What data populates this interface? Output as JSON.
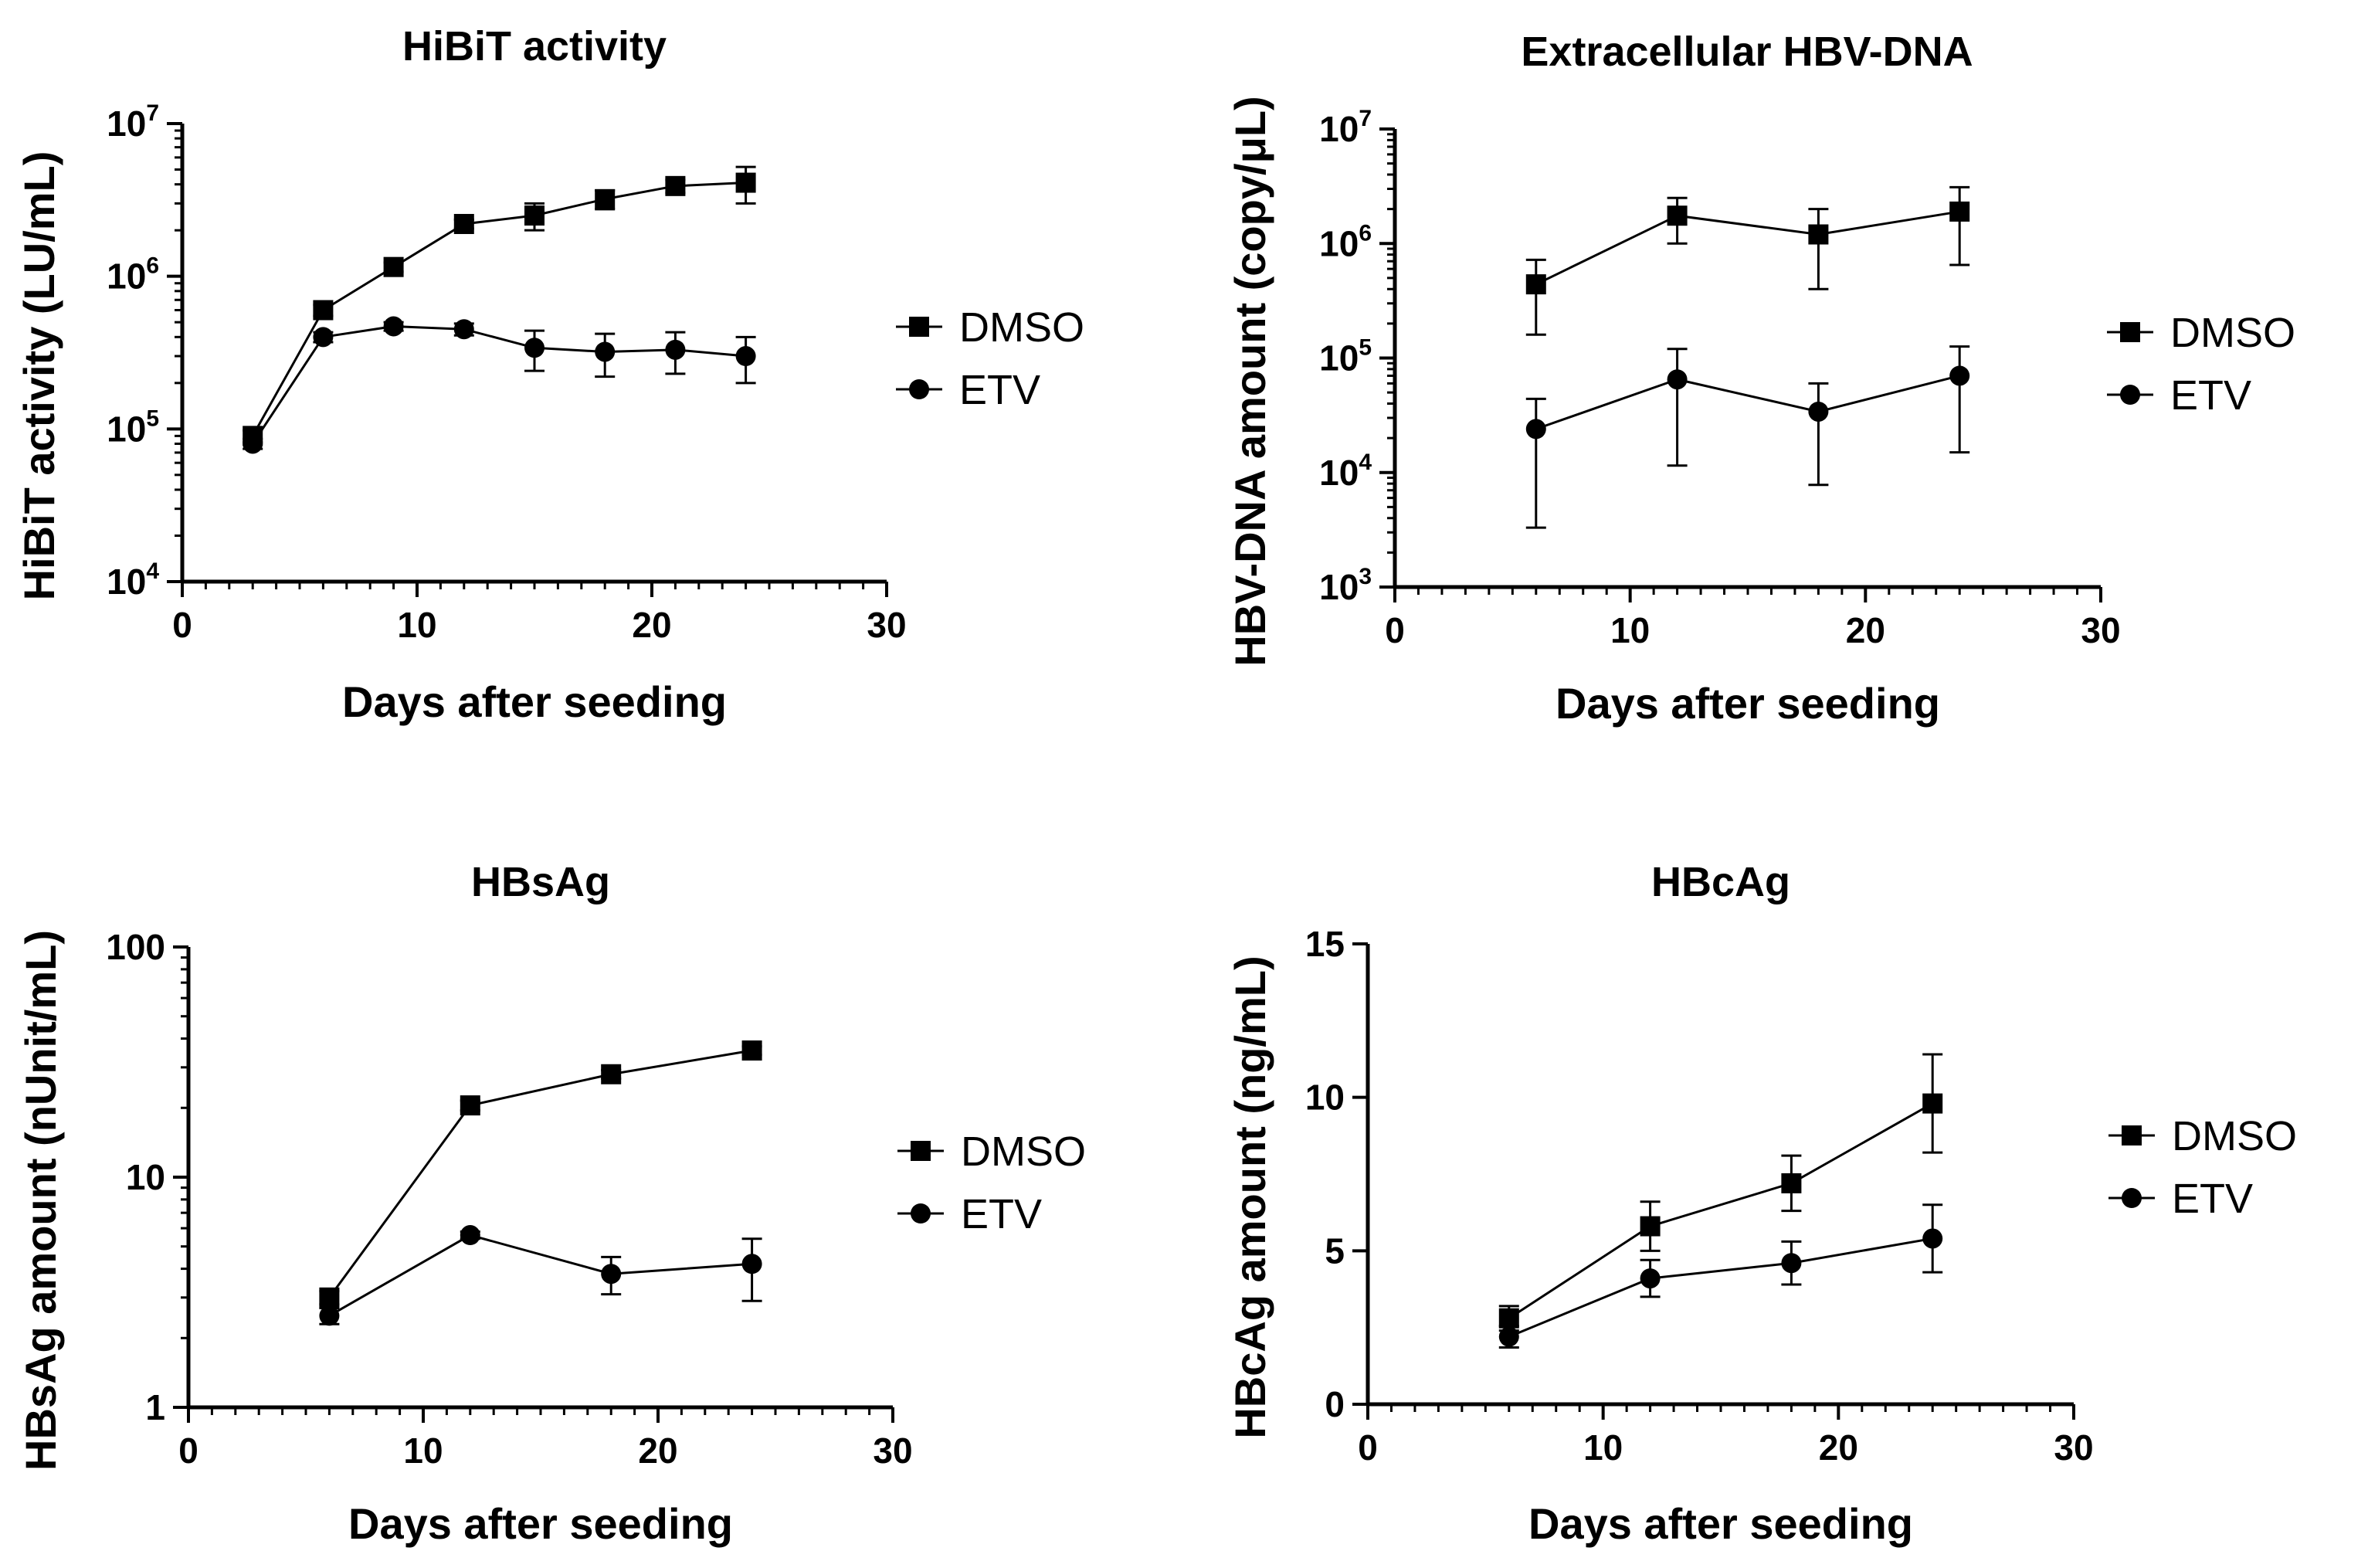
{
  "chart_data": [
    {
      "type": "line",
      "title": "HiBiT activity",
      "xlabel": "Days after seeding",
      "ylabel": "HiBiT activity (LU/mL)",
      "yscale": "log",
      "xlim": [
        0,
        30
      ],
      "ylim": [
        10000,
        10000000
      ],
      "xticks": [
        0,
        10,
        20,
        30
      ],
      "xtick_labels": [
        "0",
        "10",
        "20",
        "30"
      ],
      "yticks": [
        10000,
        100000,
        1000000,
        10000000
      ],
      "ytick_labels": [
        {
          "base": "10",
          "exp": "4"
        },
        {
          "base": "10",
          "exp": "5"
        },
        {
          "base": "10",
          "exp": "6"
        },
        {
          "base": "10",
          "exp": "7"
        }
      ],
      "legend_position": "right",
      "series": [
        {
          "name": "DMSO",
          "marker": "square",
          "x": [
            3,
            6,
            9,
            12,
            15,
            18,
            21,
            24
          ],
          "y": [
            90000,
            600000,
            1150000,
            2200000,
            2500000,
            3200000,
            3900000,
            4100000
          ],
          "err": [
            8000,
            50000,
            80000,
            150000,
            500000,
            450000,
            380000,
            1100000
          ]
        },
        {
          "name": "ETV",
          "marker": "circle",
          "x": [
            3,
            6,
            9,
            12,
            15,
            18,
            21,
            24
          ],
          "y": [
            80000,
            400000,
            470000,
            450000,
            340000,
            320000,
            330000,
            300000
          ],
          "err": [
            6000,
            30000,
            30000,
            40000,
            100000,
            100000,
            100000,
            100000
          ]
        }
      ]
    },
    {
      "type": "line",
      "title": "Extracellular HBV-DNA",
      "xlabel": "Days after seeding",
      "ylabel": "HBV-DNA amount (copy/μL)",
      "yscale": "log",
      "xlim": [
        0,
        30
      ],
      "ylim": [
        1000,
        10000000
      ],
      "xticks": [
        0,
        10,
        20,
        30
      ],
      "xtick_labels": [
        "0",
        "10",
        "20",
        "30"
      ],
      "yticks": [
        1000,
        10000,
        100000,
        1000000,
        10000000
      ],
      "ytick_labels": [
        {
          "base": "10",
          "exp": "3"
        },
        {
          "base": "10",
          "exp": "4"
        },
        {
          "base": "10",
          "exp": "5"
        },
        {
          "base": "10",
          "exp": "6"
        },
        {
          "base": "10",
          "exp": "7"
        }
      ],
      "legend_position": "right",
      "series": [
        {
          "name": "DMSO",
          "marker": "square",
          "x": [
            6,
            12,
            18,
            24
          ],
          "y": [
            440000,
            1750000,
            1200000,
            1900000
          ],
          "err_low": [
            160000,
            1000000,
            400000,
            650000
          ],
          "err_high": [
            720000,
            2500000,
            2000000,
            3100000
          ]
        },
        {
          "name": "ETV",
          "marker": "circle",
          "x": [
            6,
            12,
            18,
            24
          ],
          "y": [
            24000,
            65000,
            34000,
            70000
          ],
          "err_low": [
            3300,
            11500,
            7800,
            15000
          ],
          "err_high": [
            44000,
            120000,
            60000,
            126000
          ]
        }
      ]
    },
    {
      "type": "line",
      "title": "HBsAg",
      "xlabel": "Days after seeding",
      "ylabel": "HBsAg amount (nUnit/mL)",
      "yscale": "log",
      "xlim": [
        0,
        30
      ],
      "ylim": [
        1,
        100
      ],
      "xticks": [
        0,
        10,
        20,
        30
      ],
      "xtick_labels": [
        "0",
        "10",
        "20",
        "30"
      ],
      "yticks": [
        1,
        10,
        100
      ],
      "ytick_labels": [
        "1",
        "10",
        "100"
      ],
      "legend_position": "right",
      "series": [
        {
          "name": "DMSO",
          "marker": "square",
          "x": [
            6,
            12,
            18,
            24
          ],
          "y": [
            3.0,
            20.5,
            28.0,
            35.5
          ],
          "err": [
            0.2,
            1.0,
            1.2,
            1.5
          ]
        },
        {
          "name": "ETV",
          "marker": "circle",
          "x": [
            6,
            12,
            18,
            24
          ],
          "y": [
            2.5,
            5.6,
            3.8,
            4.2
          ],
          "err_low": [
            2.3,
            5.4,
            3.1,
            2.9
          ],
          "err_high": [
            2.7,
            5.8,
            4.5,
            5.4
          ]
        }
      ]
    },
    {
      "type": "line",
      "title": "HBcAg",
      "xlabel": "Days after seeding",
      "ylabel": "HBcAg amount (ng/mL)",
      "yscale": "linear",
      "xlim": [
        0,
        30
      ],
      "ylim": [
        0,
        15
      ],
      "xticks": [
        0,
        10,
        20,
        30
      ],
      "xtick_labels": [
        "0",
        "10",
        "20",
        "30"
      ],
      "yticks": [
        0,
        5,
        10,
        15
      ],
      "ytick_labels": [
        "0",
        "5",
        "10",
        "15"
      ],
      "legend_position": "right",
      "series": [
        {
          "name": "DMSO",
          "marker": "square",
          "x": [
            6,
            12,
            18,
            24
          ],
          "y": [
            2.8,
            5.8,
            7.2,
            9.8
          ],
          "err": [
            0.4,
            0.8,
            0.9,
            1.6
          ]
        },
        {
          "name": "ETV",
          "marker": "circle",
          "x": [
            6,
            12,
            18,
            24
          ],
          "y": [
            2.2,
            4.1,
            4.6,
            5.4
          ],
          "err": [
            0.35,
            0.6,
            0.7,
            1.1
          ]
        }
      ]
    }
  ]
}
